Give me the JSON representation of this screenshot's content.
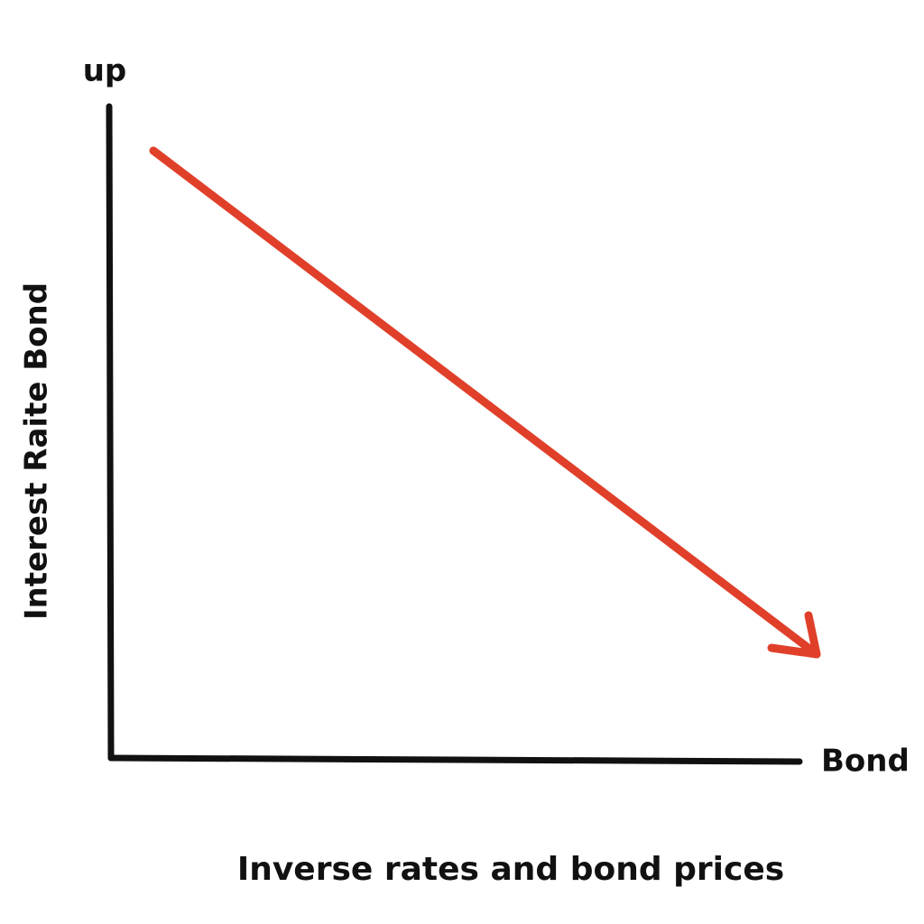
{
  "labels": {
    "y_top": "up",
    "y_axis": "Interest Raite Bond",
    "x_end": "Bond",
    "caption": "Inverse rates and bond prices"
  }
}
